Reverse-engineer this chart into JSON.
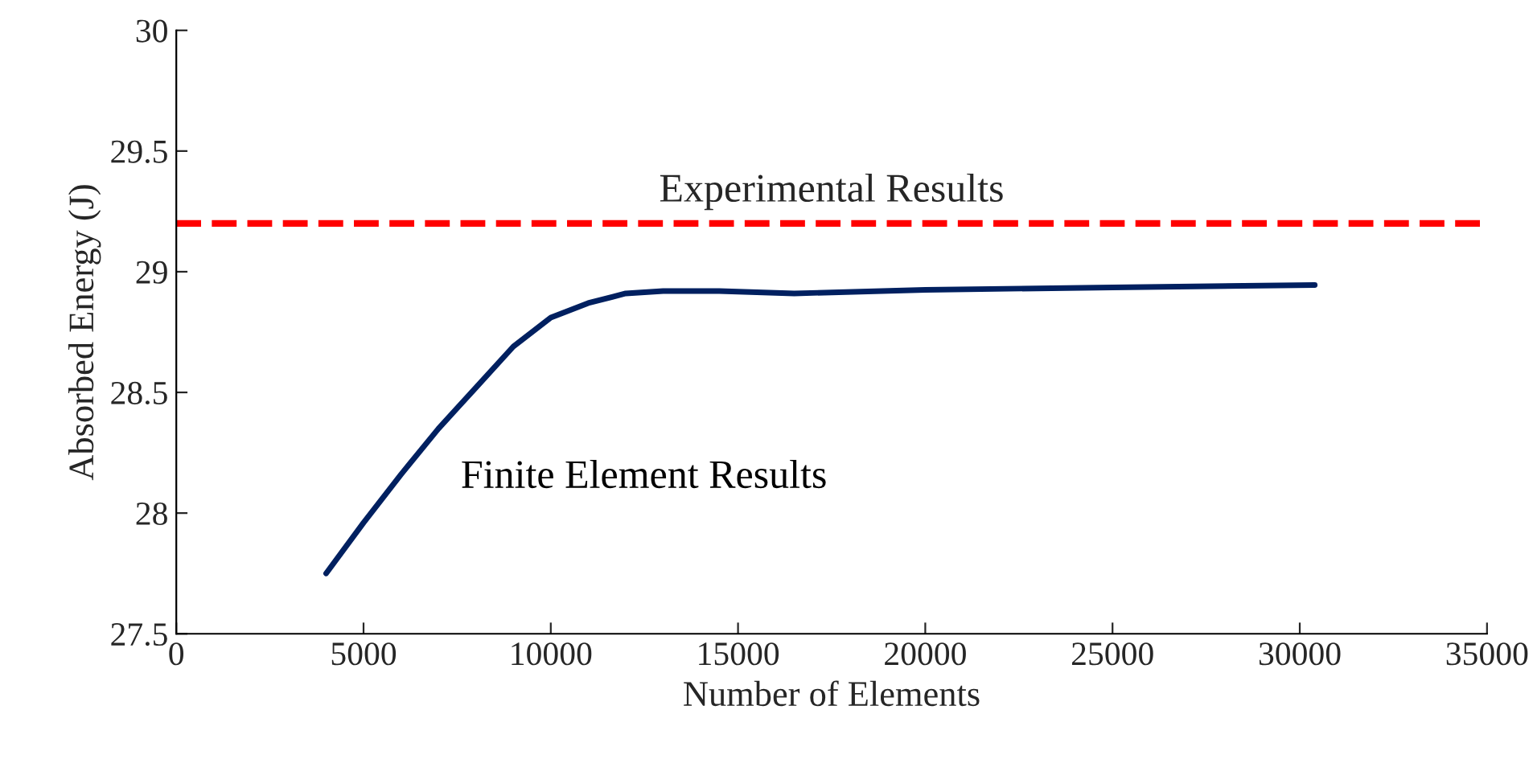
{
  "chart_data": {
    "type": "line",
    "xlabel": "Number of Elements",
    "ylabel": "Absorbed Energy (J)",
    "x": [
      4000,
      5000,
      6000,
      7000,
      8000,
      9000,
      10000,
      11000,
      12000,
      13000,
      14500,
      16500,
      20000,
      25000,
      30400
    ],
    "series": [
      {
        "name": "Finite Element Results",
        "color": "#002060",
        "values": [
          27.75,
          27.96,
          28.16,
          28.35,
          28.52,
          28.69,
          28.81,
          28.87,
          28.91,
          28.92,
          28.92,
          28.91,
          28.925,
          28.935,
          28.945
        ]
      }
    ],
    "ref_lines": [
      {
        "axis": "y",
        "value": 29.2,
        "label": "Experimental Results",
        "color": "#ff0000",
        "line_style": "dashed"
      }
    ],
    "xlim": [
      0,
      35000
    ],
    "xticks": [
      0,
      5000,
      10000,
      15000,
      20000,
      25000,
      30000,
      35000
    ],
    "ylim": [
      27.5,
      30
    ],
    "yticks": [
      27.5,
      28,
      28.5,
      29,
      29.5,
      30
    ],
    "grid": false,
    "legend": false,
    "marker": "none",
    "line_style": "solid"
  }
}
